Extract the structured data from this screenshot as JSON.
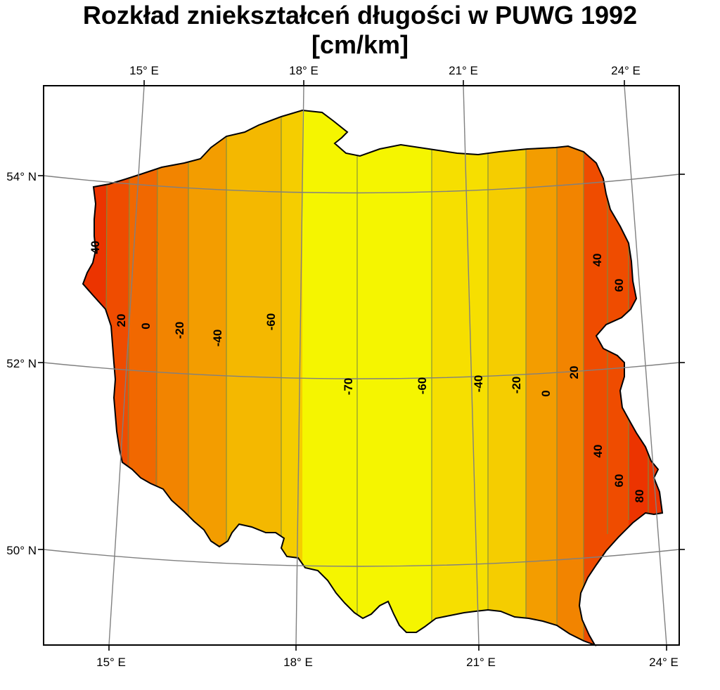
{
  "title": {
    "line1": "Rozkład zniekształceń długości w PUWG 1992",
    "line2": "[cm/km]"
  },
  "map": {
    "top_lon_labels": [
      "15° E",
      "18° E",
      "21° E",
      "24° E"
    ],
    "bottom_lon_labels": [
      "15° E",
      "18° E",
      "21° E",
      "24° E"
    ],
    "lat_labels": [
      "54° N",
      "52° N",
      "50° N"
    ],
    "isoline_labels": [
      {
        "text": "40",
        "value": 40
      },
      {
        "text": "20",
        "value": 20
      },
      {
        "text": "0",
        "value": 0
      },
      {
        "text": "-20",
        "value": -20
      },
      {
        "text": "-40",
        "value": -40
      },
      {
        "text": "-60",
        "value": -60
      },
      {
        "text": "-70",
        "value": -70
      },
      {
        "text": "-60",
        "value": -60
      },
      {
        "text": "-40",
        "value": -40
      },
      {
        "text": "-20",
        "value": -20
      },
      {
        "text": "0",
        "value": 0
      },
      {
        "text": "20",
        "value": 20
      },
      {
        "text": "40",
        "value": 40
      },
      {
        "text": "60",
        "value": 60
      },
      {
        "text": "40",
        "value": 40
      },
      {
        "text": "60",
        "value": 60
      },
      {
        "text": "80",
        "value": 80
      }
    ],
    "band_colors": [
      "#f5f500",
      "#f6df00",
      "#f5cd00",
      "#f4b800",
      "#f39d00",
      "#f28400",
      "#f16800",
      "#ef4c00",
      "#ec3400"
    ]
  }
}
